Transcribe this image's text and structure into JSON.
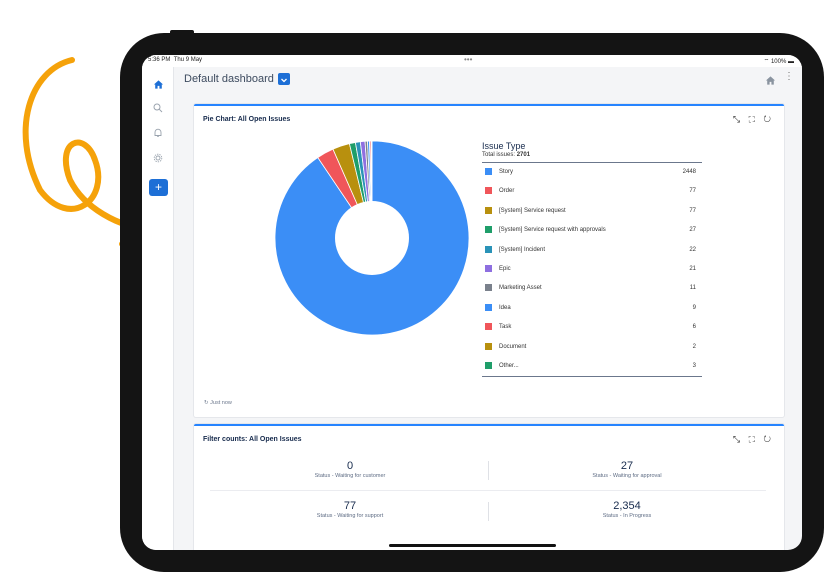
{
  "status_bar": {
    "time": "5:36 PM",
    "date": "Thu 9 May",
    "dots": "•••",
    "battery": "100%"
  },
  "header": {
    "title": "Default dashboard"
  },
  "sidebar": {
    "items": [
      "home-icon",
      "search-icon",
      "bell-icon",
      "gear-icon"
    ],
    "create_label": "+"
  },
  "pie_gadget": {
    "title": "Pie Chart: All Open Issues",
    "tools": "⤡ ⛶ ↻",
    "legend_title": "Issue Type",
    "total_label": "Total issues:",
    "total_value": "2701",
    "refreshed": "Just now"
  },
  "chart_data": {
    "type": "pie",
    "title": "Pie Chart: All Open Issues",
    "donut": true,
    "slices": [
      {
        "label": "Story",
        "value": 2448,
        "color": "#3b8ef6"
      },
      {
        "label": "Order",
        "value": 77,
        "color": "#f0565a"
      },
      {
        "label": "[System] Service request",
        "value": 77,
        "color": "#b8900e"
      },
      {
        "label": "[System] Service request with approvals",
        "value": 27,
        "color": "#1f9e6a"
      },
      {
        "label": "[System] Incident",
        "value": 22,
        "color": "#2a93b8"
      },
      {
        "label": "Epic",
        "value": 21,
        "color": "#8e6fe0"
      },
      {
        "label": "Marketing Asset",
        "value": 11,
        "color": "#7a818c"
      },
      {
        "label": "Idea",
        "value": 9,
        "color": "#3b8ef6"
      },
      {
        "label": "Task",
        "value": 6,
        "color": "#f0565a"
      },
      {
        "label": "Document",
        "value": 2,
        "color": "#b8900e"
      },
      {
        "label": "Other...",
        "value": 3,
        "color": "#1f9e6a"
      }
    ]
  },
  "filter_gadget": {
    "title": "Filter counts: All Open Issues",
    "tools": "⤡ ⛶ ↻",
    "counts": [
      {
        "value": "0",
        "label": "Status - Waiting for customer"
      },
      {
        "value": "27",
        "label": "Status - Waiting for approval"
      },
      {
        "value": "77",
        "label": "Status - Waiting for support"
      },
      {
        "value": "2,354",
        "label": "Status - In Progress"
      }
    ]
  }
}
